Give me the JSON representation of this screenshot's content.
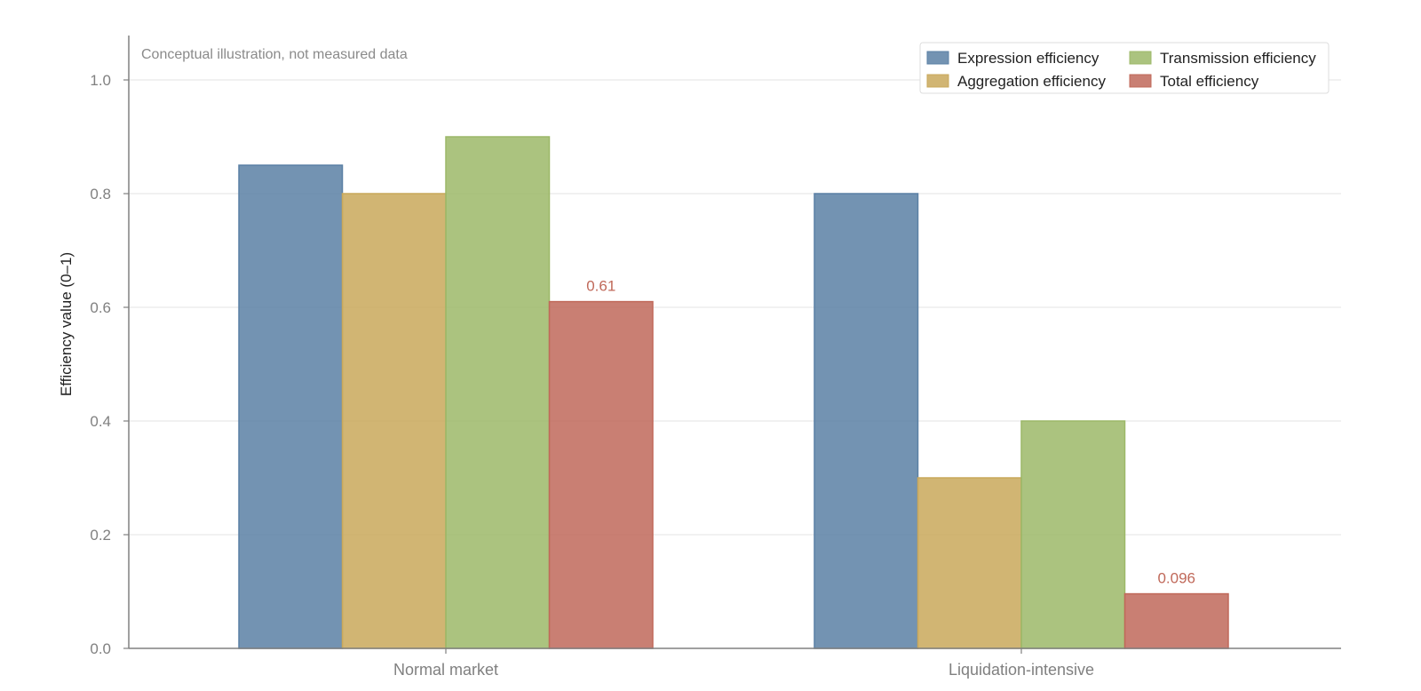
{
  "chart_data": {
    "type": "bar",
    "annotation": "Conceptual illustration, not measured data",
    "ylabel": "Efficiency value (0–1)",
    "xlabel": "",
    "ylim": [
      0,
      1.0
    ],
    "yticks": [
      "0.0",
      "0.2",
      "0.4",
      "0.6",
      "0.8",
      "1.0"
    ],
    "grid": true,
    "legend_position": "top-right",
    "categories": [
      "Normal market",
      "Liquidation-intensive"
    ],
    "series": [
      {
        "name": "Expression efficiency",
        "values": [
          0.85,
          0.8
        ],
        "color": "#5b80a5"
      },
      {
        "name": "Aggregation efficiency",
        "values": [
          0.8,
          0.3
        ],
        "color": "#c9a85b"
      },
      {
        "name": "Transmission efficiency",
        "values": [
          0.9,
          0.4
        ],
        "color": "#9cb868"
      },
      {
        "name": "Total efficiency",
        "values": [
          0.61,
          0.096
        ],
        "color": "#c0695a",
        "labels": [
          "0.61",
          "0.096"
        ]
      }
    ]
  }
}
